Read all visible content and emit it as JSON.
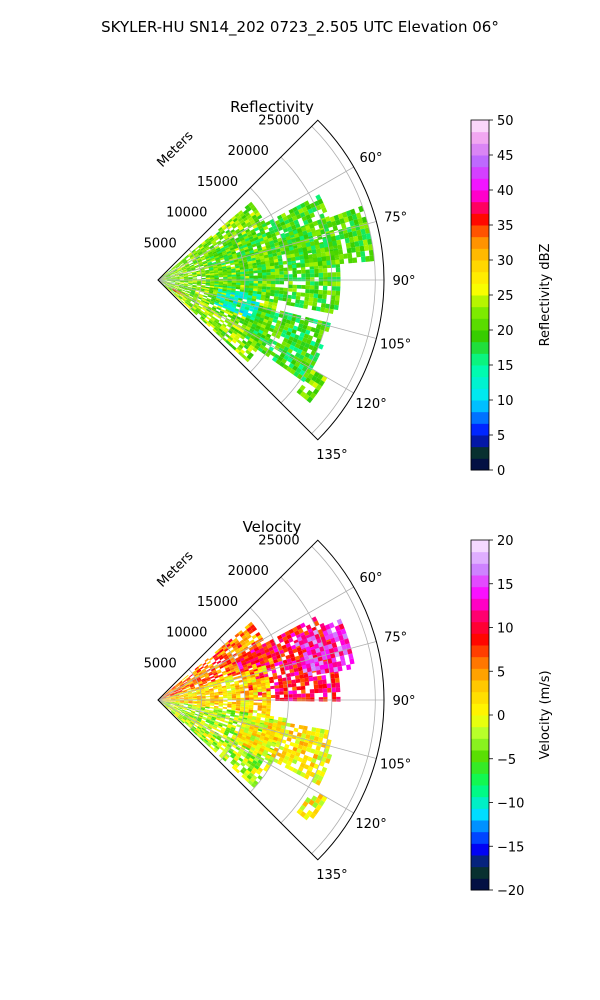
{
  "figure": {
    "suptitle": "SKYLER-HU  SN14_202  0723_2.505 UTC Elevation 06°"
  },
  "chart_data": [
    {
      "type": "polar-sector-heatmap",
      "title": "Reflectivity",
      "range_axis_label": "Meters",
      "range_ticks": [
        5000,
        10000,
        15000,
        20000,
        25000
      ],
      "range_tick_labels": [
        "5000",
        "10000",
        "15000",
        "20000",
        "25000"
      ],
      "range_lim": [
        0,
        26000
      ],
      "azimuth_ticks_deg": [
        60,
        75,
        90,
        105,
        120,
        135
      ],
      "azimuth_tick_labels": [
        "60°",
        "75°",
        "90°",
        "105°",
        "120°",
        "135°"
      ],
      "azimuth_lim_deg": [
        45,
        135
      ],
      "grid": true,
      "colorbar": {
        "label": "Reflectivity dBZ",
        "min": 0,
        "max": 50,
        "ticks": [
          0,
          5,
          10,
          15,
          20,
          25,
          30,
          35,
          40,
          45,
          50
        ],
        "tick_labels": [
          "0",
          "5",
          "10",
          "15",
          "20",
          "25",
          "30",
          "35",
          "40",
          "45",
          "50"
        ]
      },
      "echo_regions": [
        {
          "az_from": 50,
          "az_to": 132,
          "r_from": 0,
          "r_to": 14000,
          "value": 22
        },
        {
          "az_from": 62,
          "az_to": 100,
          "r_from": 6000,
          "r_to": 21000,
          "value": 20
        },
        {
          "az_from": 70,
          "az_to": 84,
          "r_from": 15000,
          "r_to": 25000,
          "value": 20
        },
        {
          "az_from": 98,
          "az_to": 112,
          "r_from": 7000,
          "r_to": 12000,
          "value": 13
        },
        {
          "az_from": 104,
          "az_to": 125,
          "r_from": 12000,
          "r_to": 20500,
          "value": 19
        },
        {
          "az_from": 120,
          "az_to": 128,
          "r_from": 20500,
          "r_to": 22500,
          "value": 22
        },
        {
          "az_from": 118,
          "az_to": 124,
          "r_from": 2000,
          "r_to": 3500,
          "value": 33
        }
      ]
    },
    {
      "type": "polar-sector-heatmap",
      "title": "Velocity",
      "range_axis_label": "Meters",
      "range_ticks": [
        5000,
        10000,
        15000,
        20000,
        25000
      ],
      "range_tick_labels": [
        "5000",
        "10000",
        "15000",
        "20000",
        "25000"
      ],
      "range_lim": [
        0,
        26000
      ],
      "azimuth_ticks_deg": [
        60,
        75,
        90,
        105,
        120,
        135
      ],
      "azimuth_tick_labels": [
        "60°",
        "75°",
        "90°",
        "105°",
        "120°",
        "135°"
      ],
      "azimuth_lim_deg": [
        45,
        135
      ],
      "grid": true,
      "colorbar": {
        "label": "Velocity (m/s)",
        "min": -20,
        "max": 20,
        "ticks": [
          -20,
          -15,
          -10,
          -5,
          0,
          5,
          10,
          15,
          20
        ],
        "tick_labels": [
          "−20",
          "−15",
          "−10",
          "−5",
          "0",
          "5",
          "10",
          "15",
          "20"
        ]
      },
      "echo_regions": [
        {
          "az_from": 50,
          "az_to": 72,
          "r_from": 0,
          "r_to": 14000,
          "value": 6
        },
        {
          "az_from": 62,
          "az_to": 90,
          "r_from": 10000,
          "r_to": 21000,
          "value": 10
        },
        {
          "az_from": 66,
          "az_to": 80,
          "r_from": 17000,
          "r_to": 23000,
          "value": 14
        },
        {
          "az_from": 72,
          "az_to": 98,
          "r_from": 0,
          "r_to": 13000,
          "value": 2
        },
        {
          "az_from": 98,
          "az_to": 132,
          "r_from": 0,
          "r_to": 15000,
          "value": -2
        },
        {
          "az_from": 100,
          "az_to": 118,
          "r_from": 10000,
          "r_to": 21000,
          "value": 1
        },
        {
          "az_from": 120,
          "az_to": 128,
          "r_from": 20500,
          "r_to": 22500,
          "value": 1
        }
      ]
    }
  ]
}
